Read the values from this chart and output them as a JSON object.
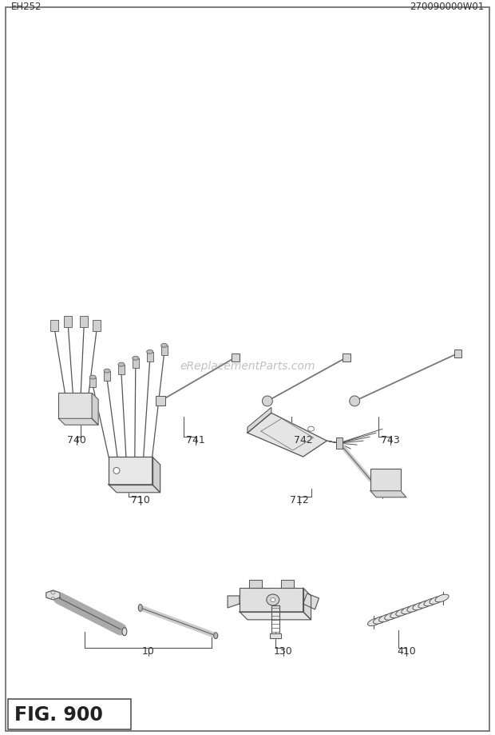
{
  "title": "FIG. 900",
  "footer_left": "EH252",
  "footer_right": "270090000W01",
  "watermark": "eReplacementParts.com",
  "bg_color": "#ffffff",
  "border_color": "#666666",
  "text_color": "#333333"
}
